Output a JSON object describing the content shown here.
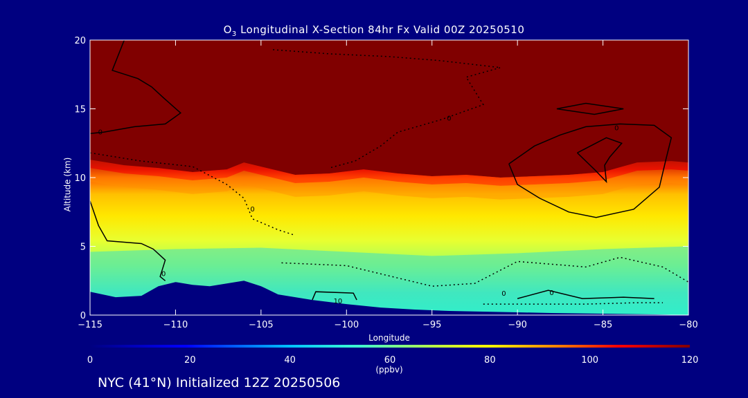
{
  "title": {
    "species": "O",
    "subscript": "3",
    "rest": " Longitudinal X-Section 84hr  Fx Valid 00Z 20250510"
  },
  "footer": "NYC (41°N) Initialized 12Z 20250506",
  "colors": {
    "background": "#000080",
    "low": "#00007f",
    "high": "#800000"
  },
  "chart_data": {
    "type": "heatmap",
    "x_axis": {
      "label": "Longitude",
      "range": [
        -115,
        -80
      ],
      "ticks": [
        -115,
        -110,
        -105,
        -100,
        -95,
        -90,
        -85,
        -80
      ],
      "tick_labels": [
        "−115",
        "−110",
        "−105",
        "−100",
        "−95",
        "−90",
        "−85",
        "−80"
      ]
    },
    "y_axis": {
      "label": "Altitude (km)",
      "range": [
        0,
        20
      ],
      "ticks": [
        0,
        5,
        10,
        15,
        20
      ],
      "tick_labels": [
        "0",
        "5",
        "10",
        "15",
        "20"
      ]
    },
    "colorbar": {
      "range": [
        0,
        120
      ],
      "ticks": [
        0,
        20,
        40,
        60,
        80,
        100,
        120
      ],
      "tick_labels": [
        "0",
        "20",
        "40",
        "60",
        "80",
        "100",
        "120"
      ],
      "units": "(ppbv)"
    },
    "contour_labels": [
      "0",
      "0",
      "0",
      "10",
      "0",
      "0",
      "0",
      "0"
    ],
    "terrain_km": {
      "lon": [
        -115,
        -113.5,
        -112,
        -111,
        -110,
        -109,
        -108,
        -107,
        -106,
        -105,
        -104,
        -102,
        -100,
        -98,
        -96,
        -94,
        -92,
        -90,
        -88,
        -85,
        -82,
        -80
      ],
      "alt": [
        1.7,
        1.3,
        1.4,
        2.1,
        2.4,
        2.2,
        2.1,
        2.3,
        2.5,
        2.1,
        1.5,
        1.1,
        0.8,
        0.55,
        0.4,
        0.3,
        0.25,
        0.2,
        0.15,
        0.1,
        0.05,
        0.0
      ]
    },
    "tropopause_km": {
      "lon": [
        -115,
        -113,
        -111,
        -109,
        -107,
        -106,
        -105,
        -103,
        -101,
        -99,
        -97,
        -95,
        -93,
        -91,
        -89,
        -87,
        -85,
        -83,
        -81,
        -80
      ],
      "alt": [
        11.3,
        10.9,
        10.7,
        10.4,
        10.6,
        11.1,
        10.8,
        10.2,
        10.3,
        10.6,
        10.3,
        10.1,
        10.2,
        10.0,
        10.1,
        10.2,
        10.4,
        11.1,
        11.2,
        11.1
      ]
    }
  }
}
